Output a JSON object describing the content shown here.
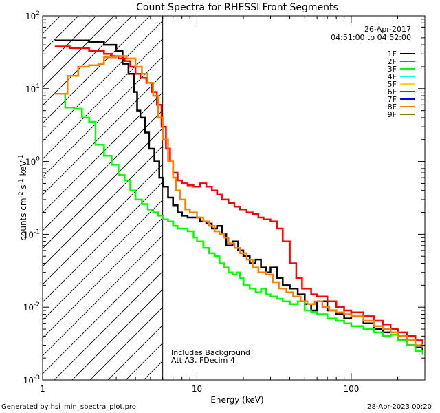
{
  "chart_data": {
    "type": "line",
    "title": "Count Spectra for RHESSI Front Segments",
    "xlabel": "Energy (keV)",
    "ylabel": {
      "base": "counts cm",
      "sup1": "-2",
      "mid1": " s",
      "sup2": "-1",
      "mid2": " keV",
      "sup3": "-1"
    },
    "x_scale": "log",
    "y_scale": "log",
    "xlim": [
      1,
      300
    ],
    "ylim": [
      0.001,
      100
    ],
    "x_ticks": [
      {
        "value": 1,
        "label": "1"
      },
      {
        "value": 10,
        "label": "10"
      },
      {
        "value": 100,
        "label": "100"
      }
    ],
    "y_ticks": [
      {
        "value": 0.001,
        "base": "10",
        "exp": "-3"
      },
      {
        "value": 0.01,
        "base": "10",
        "exp": "-2"
      },
      {
        "value": 0.1,
        "base": "10",
        "exp": "-1"
      },
      {
        "value": 1,
        "base": "10",
        "exp": "0"
      },
      {
        "value": 10,
        "base": "10",
        "exp": "1"
      },
      {
        "value": 100,
        "base": "10",
        "exp": "2"
      }
    ],
    "date": "26-Apr-2017",
    "time_range": "04:51:00 to 04:52:00",
    "hatched_region_max_energy": 6.0,
    "annotations": [
      "Includes Background",
      "Att A3, FDecim  4"
    ],
    "legend": [
      {
        "label": "1F",
        "color": "#000000"
      },
      {
        "label": "2F",
        "color": "#ff00ff"
      },
      {
        "label": "3F",
        "color": "#00ff00"
      },
      {
        "label": "4F",
        "color": "#00ffff"
      },
      {
        "label": "5F",
        "color": "#ffd700"
      },
      {
        "label": "6F",
        "color": "#ff0000"
      },
      {
        "label": "7F",
        "color": "#0000ff"
      },
      {
        "label": "8F",
        "color": "#ff8000"
      },
      {
        "label": "9F",
        "color": "#808000"
      }
    ],
    "series": [
      {
        "name": "1F",
        "color": "#000000",
        "points": [
          [
            1.2,
            46
          ],
          [
            1.5,
            46
          ],
          [
            2,
            44
          ],
          [
            2.5,
            40
          ],
          [
            3,
            33
          ],
          [
            3.3,
            22
          ],
          [
            3.6,
            16
          ],
          [
            3.9,
            9
          ],
          [
            4.1,
            5
          ],
          [
            4.3,
            4
          ],
          [
            4.6,
            2.5
          ],
          [
            4.9,
            1.5
          ],
          [
            5.3,
            1
          ],
          [
            5.7,
            0.6
          ],
          [
            6,
            0.45
          ],
          [
            6.5,
            0.32
          ],
          [
            7,
            0.25
          ],
          [
            7.5,
            0.2
          ],
          [
            8,
            0.18
          ],
          [
            8.7,
            0.17
          ],
          [
            9.5,
            0.17
          ],
          [
            10.5,
            0.15
          ],
          [
            11.5,
            0.14
          ],
          [
            12.5,
            0.12
          ],
          [
            13.5,
            0.13
          ],
          [
            14.5,
            0.1
          ],
          [
            15.5,
            0.07
          ],
          [
            17,
            0.08
          ],
          [
            18.5,
            0.06
          ],
          [
            20,
            0.05
          ],
          [
            22,
            0.04
          ],
          [
            24,
            0.045
          ],
          [
            26,
            0.035
          ],
          [
            28,
            0.03
          ],
          [
            30,
            0.035
          ],
          [
            33,
            0.025
          ],
          [
            36,
            0.02
          ],
          [
            40,
            0.018
          ],
          [
            45,
            0.015
          ],
          [
            50,
            0.011
          ],
          [
            55,
            0.009
          ],
          [
            60,
            0.012
          ],
          [
            70,
            0.009
          ],
          [
            80,
            0.008
          ],
          [
            90,
            0.007
          ],
          [
            100,
            0.0085
          ],
          [
            120,
            0.006
          ],
          [
            140,
            0.005
          ],
          [
            160,
            0.0045
          ],
          [
            180,
            0.005
          ],
          [
            200,
            0.0035
          ],
          [
            230,
            0.003
          ],
          [
            260,
            0.0028
          ],
          [
            290,
            0.0025
          ]
        ]
      },
      {
        "name": "3F",
        "color": "#00ff00",
        "points": [
          [
            1.2,
            8.5
          ],
          [
            1.3,
            8.5
          ],
          [
            1.4,
            5.5
          ],
          [
            1.6,
            5.3
          ],
          [
            1.8,
            4
          ],
          [
            2,
            3.5
          ],
          [
            2.2,
            1.7
          ],
          [
            2.5,
            1.2
          ],
          [
            2.8,
            0.9
          ],
          [
            3.1,
            0.65
          ],
          [
            3.4,
            0.55
          ],
          [
            3.7,
            0.4
          ],
          [
            4,
            0.3
          ],
          [
            4.4,
            0.26
          ],
          [
            4.8,
            0.22
          ],
          [
            5.2,
            0.2
          ],
          [
            5.6,
            0.18
          ],
          [
            6,
            0.16
          ],
          [
            6.5,
            0.15
          ],
          [
            7,
            0.13
          ],
          [
            7.5,
            0.12
          ],
          [
            8,
            0.12
          ],
          [
            8.7,
            0.11
          ],
          [
            9.5,
            0.09
          ],
          [
            10,
            0.08
          ],
          [
            11,
            0.065
          ],
          [
            12,
            0.055
          ],
          [
            13,
            0.05
          ],
          [
            14,
            0.04
          ],
          [
            15,
            0.035
          ],
          [
            16,
            0.03
          ],
          [
            17,
            0.028
          ],
          [
            18,
            0.03
          ],
          [
            19,
            0.025
          ],
          [
            20,
            0.02
          ],
          [
            22,
            0.018
          ],
          [
            24,
            0.016
          ],
          [
            26,
            0.018
          ],
          [
            28,
            0.015
          ],
          [
            30,
            0.014
          ],
          [
            33,
            0.013
          ],
          [
            36,
            0.012
          ],
          [
            40,
            0.011
          ],
          [
            45,
            0.012
          ],
          [
            50,
            0.009
          ],
          [
            55,
            0.0085
          ],
          [
            60,
            0.008
          ],
          [
            70,
            0.007
          ],
          [
            80,
            0.0065
          ],
          [
            90,
            0.006
          ],
          [
            100,
            0.0055
          ],
          [
            120,
            0.005
          ],
          [
            140,
            0.0045
          ],
          [
            160,
            0.004
          ],
          [
            180,
            0.0042
          ],
          [
            200,
            0.0035
          ],
          [
            230,
            0.003
          ],
          [
            260,
            0.0025
          ],
          [
            290,
            0.0022
          ]
        ]
      },
      {
        "name": "6F",
        "color": "#ff0000",
        "points": [
          [
            1.2,
            38
          ],
          [
            1.5,
            36
          ],
          [
            2,
            33
          ],
          [
            2.5,
            30
          ],
          [
            2.8,
            28
          ],
          [
            3.1,
            26
          ],
          [
            3.4,
            24
          ],
          [
            3.7,
            20
          ],
          [
            4,
            16
          ],
          [
            4.3,
            14
          ],
          [
            4.7,
            12
          ],
          [
            5.1,
            9
          ],
          [
            5.5,
            6
          ],
          [
            5.9,
            3
          ],
          [
            6.3,
            1.5
          ],
          [
            6.7,
            1
          ],
          [
            7,
            0.7
          ],
          [
            7.5,
            0.55
          ],
          [
            8,
            0.5
          ],
          [
            8.7,
            0.47
          ],
          [
            9.5,
            0.45
          ],
          [
            10.5,
            0.5
          ],
          [
            11.5,
            0.45
          ],
          [
            12.5,
            0.4
          ],
          [
            13.5,
            0.35
          ],
          [
            14.5,
            0.3
          ],
          [
            16,
            0.27
          ],
          [
            17.5,
            0.24
          ],
          [
            19,
            0.22
          ],
          [
            21,
            0.2
          ],
          [
            23,
            0.19
          ],
          [
            25,
            0.17
          ],
          [
            27,
            0.16
          ],
          [
            30,
            0.15
          ],
          [
            33,
            0.12
          ],
          [
            36,
            0.08
          ],
          [
            40,
            0.04
          ],
          [
            44,
            0.025
          ],
          [
            48,
            0.018
          ],
          [
            55,
            0.015
          ],
          [
            60,
            0.014
          ],
          [
            70,
            0.012
          ],
          [
            80,
            0.01
          ],
          [
            90,
            0.009
          ],
          [
            100,
            0.0085
          ],
          [
            120,
            0.0075
          ],
          [
            140,
            0.0065
          ],
          [
            160,
            0.0058
          ],
          [
            180,
            0.005
          ],
          [
            200,
            0.0045
          ],
          [
            230,
            0.004
          ],
          [
            260,
            0.0035
          ],
          [
            290,
            0.003
          ]
        ]
      },
      {
        "name": "8F",
        "color": "#ff8000",
        "points": [
          [
            1.2,
            8.5
          ],
          [
            1.35,
            8.5
          ],
          [
            1.45,
            15
          ],
          [
            1.7,
            20
          ],
          [
            2,
            21
          ],
          [
            2.3,
            22
          ],
          [
            2.5,
            27
          ],
          [
            3,
            28
          ],
          [
            3.5,
            26
          ],
          [
            4,
            20
          ],
          [
            4.4,
            16
          ],
          [
            4.8,
            12
          ],
          [
            5.2,
            8
          ],
          [
            5.6,
            4
          ],
          [
            6,
            2
          ],
          [
            6.5,
            1
          ],
          [
            7,
            0.6
          ],
          [
            7.3,
            0.4
          ],
          [
            7.8,
            0.3
          ],
          [
            8.4,
            0.22
          ],
          [
            9,
            0.2
          ],
          [
            10,
            0.17
          ],
          [
            11,
            0.15
          ],
          [
            12,
            0.13
          ],
          [
            13,
            0.11
          ],
          [
            14,
            0.1
          ],
          [
            15,
            0.09
          ],
          [
            16,
            0.075
          ],
          [
            17.5,
            0.065
          ],
          [
            19,
            0.055
          ],
          [
            21,
            0.045
          ],
          [
            23,
            0.035
          ],
          [
            25,
            0.03
          ],
          [
            28,
            0.028
          ],
          [
            31,
            0.022
          ],
          [
            34,
            0.018
          ],
          [
            38,
            0.016
          ],
          [
            42,
            0.014
          ],
          [
            47,
            0.012
          ],
          [
            52,
            0.011
          ],
          [
            58,
            0.012
          ],
          [
            65,
            0.01
          ],
          [
            72,
            0.009
          ],
          [
            80,
            0.0085
          ],
          [
            90,
            0.008
          ],
          [
            100,
            0.0075
          ],
          [
            120,
            0.0065
          ],
          [
            140,
            0.0055
          ],
          [
            160,
            0.005
          ],
          [
            180,
            0.0045
          ],
          [
            200,
            0.004
          ],
          [
            230,
            0.0035
          ],
          [
            260,
            0.003
          ],
          [
            290,
            0.0028
          ]
        ]
      }
    ]
  },
  "footer": {
    "generated_by": "Generated by hsi_min_spectra_plot.pro",
    "timestamp": "28-Apr-2023 00:20"
  }
}
